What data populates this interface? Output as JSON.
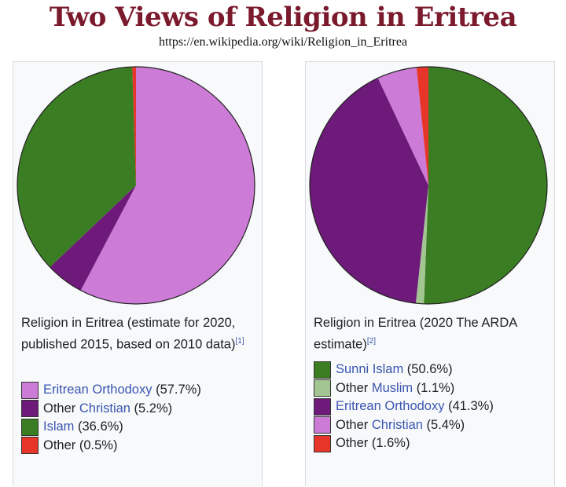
{
  "header": {
    "title": "Two Views of Religion in Eritrea",
    "url": "https://en.wikipedia.org/wiki/Religion_in_Eritrea"
  },
  "chart_data": [
    {
      "type": "pie",
      "caption": "Religion in Eritrea (estimate for 2020, published 2015, based on 2010 data)",
      "ref": "[1]",
      "start": "top",
      "direction": "clockwise",
      "slices": [
        {
          "prefix": "",
          "link": "Eritrean Orthodoxy",
          "value": 57.7,
          "label": " (57.7%)",
          "color": "#cc7bd6"
        },
        {
          "prefix": "Other ",
          "link": "Christian",
          "value": 5.2,
          "label": " (5.2%)",
          "color": "#6d1a7a"
        },
        {
          "prefix": "",
          "link": "Islam",
          "value": 36.6,
          "label": " (36.6%)",
          "color": "#3a7d22"
        },
        {
          "prefix": "Other",
          "link": "",
          "value": 0.5,
          "label": " (0.5%)",
          "color": "#e8352a"
        }
      ]
    },
    {
      "type": "pie",
      "caption": "Religion in Eritrea (2020 The ARDA estimate)",
      "ref": "[2]",
      "start": "top",
      "direction": "clockwise",
      "slices": [
        {
          "prefix": "",
          "link": "Sunni Islam",
          "value": 50.6,
          "label": " (50.6%)",
          "color": "#3a7d22"
        },
        {
          "prefix": "Other ",
          "link": "Muslim",
          "value": 1.1,
          "label": " (1.1%)",
          "color": "#a3c592"
        },
        {
          "prefix": "",
          "link": "Eritrean Orthodoxy",
          "value": 41.3,
          "label": " (41.3%)",
          "color": "#6d1a7a"
        },
        {
          "prefix": "Other ",
          "link": "Christian",
          "value": 5.4,
          "label": " (5.4%)",
          "color": "#cc7bd6"
        },
        {
          "prefix": "Other",
          "link": "",
          "value": 1.6,
          "label": " (1.6%)",
          "color": "#e8352a"
        }
      ]
    }
  ]
}
